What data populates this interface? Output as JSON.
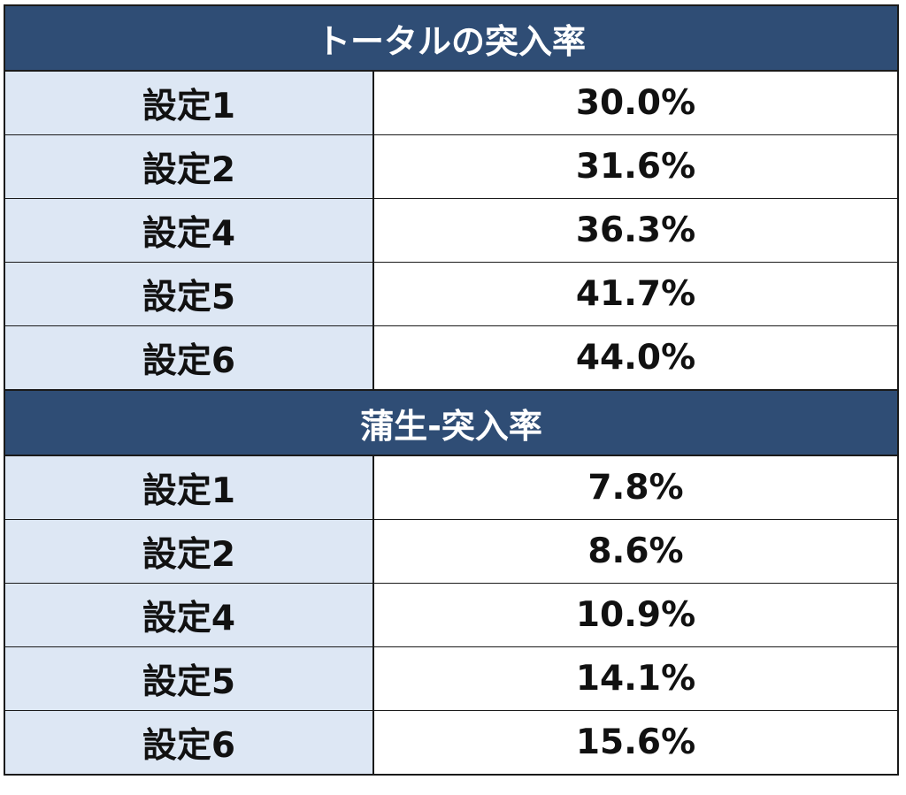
{
  "sections": [
    {
      "title": "トータルの突入率",
      "rows": [
        {
          "label": "設定1",
          "value": "30.0%"
        },
        {
          "label": "設定2",
          "value": "31.6%"
        },
        {
          "label": "設定4",
          "value": "36.3%"
        },
        {
          "label": "設定5",
          "value": "41.7%"
        },
        {
          "label": "設定6",
          "value": "44.0%"
        }
      ]
    },
    {
      "title": "蒲生-突入率",
      "rows": [
        {
          "label": "設定1",
          "value": "7.8%"
        },
        {
          "label": "設定2",
          "value": "8.6%"
        },
        {
          "label": "設定4",
          "value": "10.9%"
        },
        {
          "label": "設定5",
          "value": "14.1%"
        },
        {
          "label": "設定6",
          "value": "15.6%"
        }
      ]
    }
  ],
  "colors": {
    "header_bg": "#2f4d75",
    "header_text": "#ffffff",
    "label_bg": "#dde7f4",
    "value_bg": "#ffffff",
    "border": "#1a1a1a"
  }
}
